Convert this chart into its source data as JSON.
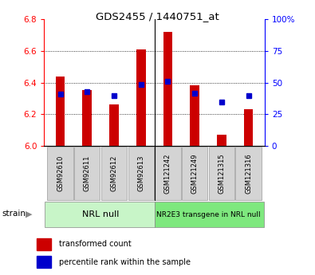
{
  "title": "GDS2455 / 1440751_at",
  "samples": [
    "GSM92610",
    "GSM92611",
    "GSM92612",
    "GSM92613",
    "GSM121242",
    "GSM121249",
    "GSM121315",
    "GSM121316"
  ],
  "red_values": [
    6.44,
    6.35,
    6.26,
    6.61,
    6.72,
    6.38,
    6.07,
    6.23
  ],
  "blue_values": [
    6.325,
    6.34,
    6.315,
    6.385,
    6.41,
    6.33,
    6.275,
    6.315
  ],
  "y_min": 6.0,
  "y_max": 6.8,
  "y_ticks": [
    6.0,
    6.2,
    6.4,
    6.6,
    6.8
  ],
  "right_y_ticks": [
    0,
    25,
    50,
    75,
    100
  ],
  "right_y_labels": [
    "0",
    "25",
    "50",
    "75",
    "100%"
  ],
  "group_labels": [
    "NRL null",
    "NR2E3 transgene in NRL null"
  ],
  "group_colors": [
    "#c8f5c8",
    "#7ee87e"
  ],
  "bar_color": "#cc0000",
  "dot_color": "#0000cc",
  "legend_red": "transformed count",
  "legend_blue": "percentile rank within the sample",
  "bar_width": 0.35,
  "strain_label": "strain"
}
